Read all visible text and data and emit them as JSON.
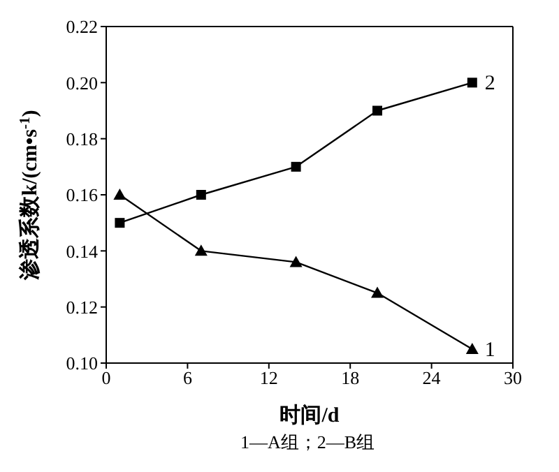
{
  "chart_data": {
    "type": "line",
    "xlabel": "时间/d",
    "ylabel": "渗透系数k/(cm•s$^{-1}$)",
    "x": [
      1,
      7,
      14,
      20,
      27
    ],
    "series": [
      {
        "name": "1",
        "color": "#000000",
        "marker": "triangle",
        "values": [
          0.16,
          0.14,
          0.136,
          0.125,
          0.105
        ]
      },
      {
        "name": "2",
        "color": "#000000",
        "marker": "square",
        "values": [
          0.15,
          0.16,
          0.17,
          0.19,
          0.2
        ]
      }
    ],
    "xlim": [
      0,
      30
    ],
    "xticks": [
      0,
      6,
      12,
      18,
      24,
      30
    ],
    "ylim": [
      0.1,
      0.22
    ],
    "yticks": [
      {
        "value": 0.1,
        "label": "0.10"
      },
      0.12,
      0.14,
      0.16,
      0.18,
      {
        "value": 0.2,
        "label": "0.20"
      },
      0.22
    ],
    "grid": false,
    "legend": false,
    "line_style": "solid",
    "annotations": [
      "1—A组；2—B组"
    ]
  }
}
